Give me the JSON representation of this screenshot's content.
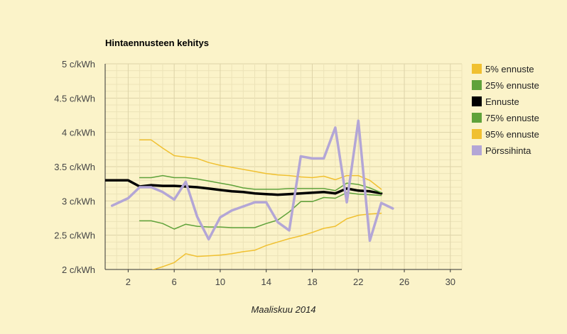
{
  "chart_data": {
    "type": "line",
    "title": "Hintaennusteen kehitys",
    "xlabel": "Maaliskuu 2014",
    "ylabel": "",
    "xlim": [
      0,
      31
    ],
    "ylim": [
      2,
      5
    ],
    "x_ticks": [
      2,
      6,
      10,
      14,
      18,
      22,
      26,
      30
    ],
    "x_tick_labels": [
      "2",
      "6",
      "10",
      "14",
      "18",
      "22",
      "26",
      "30"
    ],
    "y_ticks": [
      2,
      2.5,
      3,
      3.5,
      4,
      4.5,
      5
    ],
    "y_tick_labels": [
      "2 c/kWh",
      "2.5 c/kWh",
      "3 c/kWh",
      "3.5 c/kWh",
      "4 c/kWh",
      "4.5 c/kWh",
      "5 c/kWh"
    ],
    "grid": true,
    "legend_position": "right",
    "series": [
      {
        "name": "5% ennuste",
        "color": "#f0c030",
        "width": 1.5,
        "x": [
          4,
          5,
          6,
          7,
          8,
          9,
          10,
          11,
          12,
          13,
          14,
          15,
          16,
          17,
          18,
          19,
          20,
          21,
          22,
          23,
          24
        ],
        "y": [
          1.99,
          2.04,
          2.1,
          2.23,
          2.19,
          2.2,
          2.21,
          2.23,
          2.26,
          2.28,
          2.35,
          2.4,
          2.45,
          2.49,
          2.54,
          2.6,
          2.63,
          2.74,
          2.79,
          2.81,
          2.82
        ]
      },
      {
        "name": "25% ennuste",
        "color": "#5fa23a",
        "width": 1.5,
        "x": [
          3,
          4,
          5,
          6,
          7,
          8,
          9,
          10,
          11,
          12,
          13,
          14,
          15,
          16,
          17,
          18,
          19,
          20,
          21,
          22,
          23,
          24
        ],
        "y": [
          2.71,
          2.71,
          2.67,
          2.59,
          2.66,
          2.63,
          2.62,
          2.62,
          2.61,
          2.61,
          2.61,
          2.67,
          2.72,
          2.84,
          2.99,
          2.99,
          3.05,
          3.04,
          3.12,
          3.1,
          3.09,
          3.08
        ]
      },
      {
        "name": "Ennuste",
        "color": "#000000",
        "width": 3.5,
        "x": [
          0,
          1,
          2,
          3,
          4,
          5,
          6,
          7,
          8,
          9,
          10,
          11,
          12,
          13,
          14,
          15,
          16,
          17,
          18,
          19,
          20,
          21,
          22,
          23,
          24
        ],
        "y": [
          3.3,
          3.3,
          3.3,
          3.21,
          3.23,
          3.22,
          3.22,
          3.21,
          3.2,
          3.18,
          3.16,
          3.14,
          3.13,
          3.11,
          3.1,
          3.09,
          3.1,
          3.11,
          3.12,
          3.13,
          3.11,
          3.18,
          3.15,
          3.14,
          3.11
        ]
      },
      {
        "name": "75% ennuste",
        "color": "#5fa23a",
        "width": 1.5,
        "x": [
          3,
          4,
          5,
          6,
          7,
          8,
          9,
          10,
          11,
          12,
          13,
          14,
          15,
          16,
          17,
          18,
          19,
          20,
          21,
          22,
          23,
          24
        ],
        "y": [
          3.34,
          3.34,
          3.37,
          3.34,
          3.34,
          3.32,
          3.29,
          3.26,
          3.23,
          3.19,
          3.17,
          3.17,
          3.17,
          3.18,
          3.18,
          3.18,
          3.18,
          3.15,
          3.26,
          3.24,
          3.19,
          3.12
        ]
      },
      {
        "name": "95% ennuste",
        "color": "#f0c030",
        "width": 1.5,
        "x": [
          3,
          4,
          5,
          6,
          7,
          8,
          9,
          10,
          11,
          12,
          13,
          14,
          15,
          16,
          17,
          18,
          19,
          20,
          21,
          22,
          23,
          24
        ],
        "y": [
          3.89,
          3.89,
          3.77,
          3.66,
          3.64,
          3.62,
          3.56,
          3.52,
          3.49,
          3.46,
          3.43,
          3.4,
          3.38,
          3.37,
          3.35,
          3.34,
          3.36,
          3.31,
          3.37,
          3.37,
          3.3,
          3.17
        ]
      },
      {
        "name": "Pörssihinta",
        "color": "#b3a6d6",
        "width": 3.5,
        "x": [
          0.6,
          2,
          3,
          4,
          5,
          6,
          7,
          8,
          9,
          10,
          11,
          12,
          13,
          14,
          15,
          16,
          17,
          18,
          19,
          20,
          21,
          22,
          23,
          24,
          25
        ],
        "y": [
          2.93,
          3.04,
          3.2,
          3.2,
          3.13,
          3.02,
          3.28,
          2.77,
          2.44,
          2.76,
          2.86,
          2.92,
          2.98,
          2.98,
          2.69,
          2.57,
          3.65,
          3.62,
          3.62,
          4.07,
          2.98,
          4.17,
          2.42,
          2.97,
          2.89
        ]
      }
    ]
  }
}
